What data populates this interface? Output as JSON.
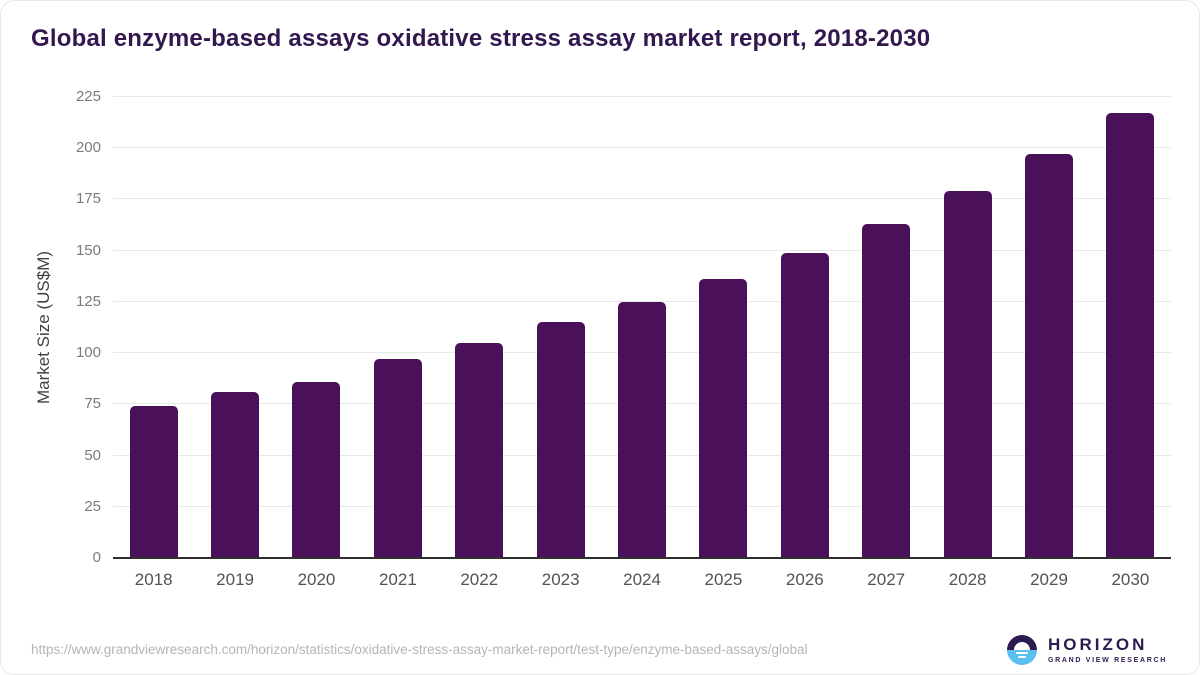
{
  "title": "Global enzyme-based assays oxidative stress assay market report, 2018-2030",
  "chart_data": {
    "type": "bar",
    "title": "Global enzyme-based assays oxidative stress assay market report, 2018-2030",
    "categories": [
      "2018",
      "2019",
      "2020",
      "2021",
      "2022",
      "2023",
      "2024",
      "2025",
      "2026",
      "2027",
      "2028",
      "2029",
      "2030"
    ],
    "values": [
      74,
      81,
      86,
      97,
      105,
      115,
      125,
      136,
      149,
      163,
      179,
      197,
      217
    ],
    "xlabel": "",
    "ylabel": "Market Size (US$M)",
    "ylim": [
      0,
      225
    ],
    "yticks": [
      0,
      25,
      50,
      75,
      100,
      125,
      150,
      175,
      200,
      225
    ],
    "grid": true,
    "legend": false,
    "bar_color": "#4a1059"
  },
  "footer": {
    "source_url": "https://www.grandviewresearch.com/horizon/statistics/oxidative-stress-assay-market-report/test-type/enzyme-based-assays/global",
    "logo": {
      "brand": "HORIZON",
      "tagline": "GRAND VIEW RESEARCH"
    }
  },
  "colors": {
    "bar": "#4a1059",
    "title_text": "#32184f",
    "logo_dark": "#2d1a4e",
    "logo_blue": "#5ac0ed"
  }
}
